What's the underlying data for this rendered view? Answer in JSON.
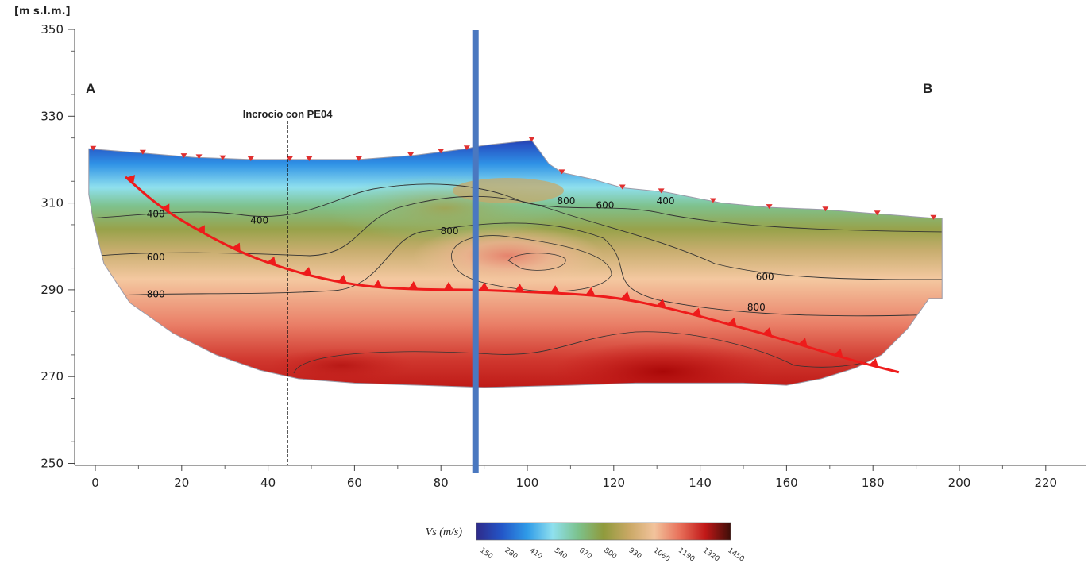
{
  "chart_data": {
    "type": "heatmap",
    "y_unit_label": "[m s.l.m.]",
    "xlim": [
      -2,
      228
    ],
    "ylim": [
      250,
      350
    ],
    "x_ticks": [
      0,
      20,
      40,
      60,
      80,
      100,
      120,
      140,
      160,
      180,
      200,
      220
    ],
    "y_ticks": [
      250,
      270,
      290,
      310,
      330,
      350
    ],
    "section_labels": {
      "start": "A",
      "end": "B"
    },
    "annotation": {
      "text": "Incrocio con PE04",
      "x": 44.5
    },
    "vertical_marker_x": 88,
    "contour_labels": [
      {
        "text": "400",
        "x": 14,
        "y": 307.5
      },
      {
        "text": "400",
        "x": 38,
        "y": 306
      },
      {
        "text": "600",
        "x": 14,
        "y": 297.5
      },
      {
        "text": "800",
        "x": 14,
        "y": 289
      },
      {
        "text": "800",
        "x": 82,
        "y": 303.5
      },
      {
        "text": "800",
        "x": 109,
        "y": 310.5
      },
      {
        "text": "600",
        "x": 118,
        "y": 309.5
      },
      {
        "text": "400",
        "x": 132,
        "y": 310.5
      },
      {
        "text": "600",
        "x": 155,
        "y": 293
      },
      {
        "text": "800",
        "x": 153,
        "y": 286
      }
    ],
    "fault_line": [
      [
        7,
        316
      ],
      [
        15,
        309
      ],
      [
        25,
        303
      ],
      [
        35,
        298
      ],
      [
        45,
        294.5
      ],
      [
        55,
        292
      ],
      [
        65,
        290.5
      ],
      [
        78,
        290
      ],
      [
        88,
        290
      ],
      [
        100,
        289.5
      ],
      [
        112,
        289
      ],
      [
        122,
        288
      ],
      [
        134,
        285.5
      ],
      [
        145,
        282.5
      ],
      [
        156,
        279.5
      ],
      [
        166,
        276.5
      ],
      [
        176,
        273.5
      ],
      [
        186,
        271
      ]
    ],
    "colorbar": {
      "title": "Vs (m/s)",
      "ticks": [
        "150",
        "280",
        "410",
        "540",
        "670",
        "800",
        "930",
        "1060",
        "1190",
        "1320",
        "1450"
      ],
      "colors": [
        "#2e2a8a",
        "#2356c8",
        "#2f9be8",
        "#8fe0ee",
        "#7cc28c",
        "#8f9a3c",
        "#c9a865",
        "#f2c39c",
        "#e8705a",
        "#c11818",
        "#3d0e08"
      ]
    }
  }
}
